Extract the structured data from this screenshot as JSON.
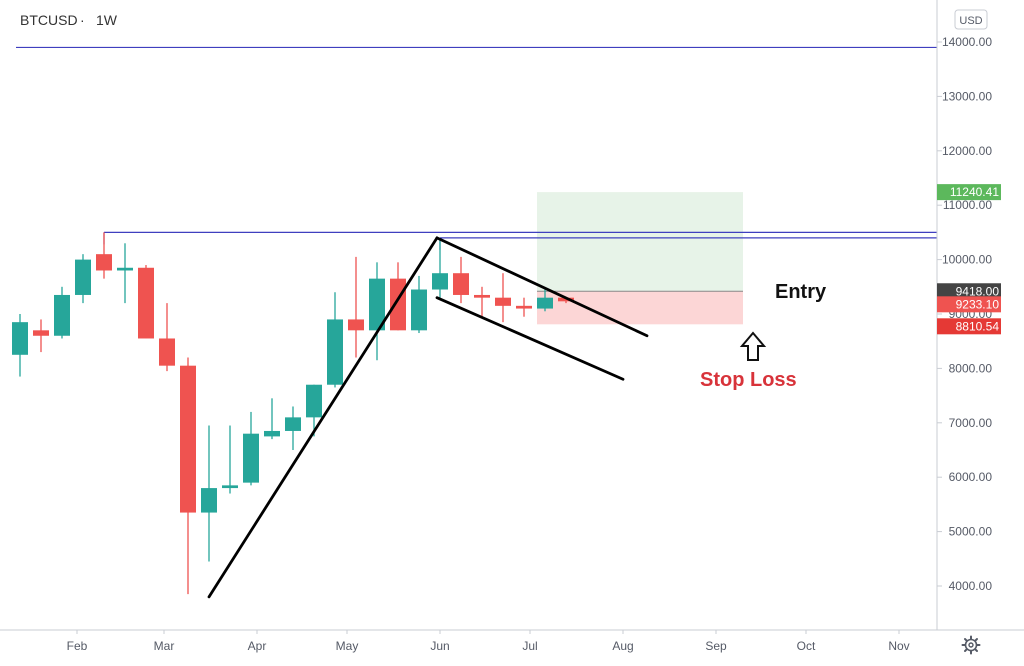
{
  "header": {
    "symbol": "BTCUSD",
    "timeframe": "1W"
  },
  "currency_badge": "USD",
  "settings_icon": "gear-icon",
  "colors": {
    "up": "#26a69a",
    "down": "#ef5350",
    "resistance": "#3f3fbf",
    "target_zone": "#e3f1e4",
    "stop_zone": "#fbcfcf",
    "entry_badge": "#444444",
    "stop_badge": "#e53935",
    "target_badge": "#5cb85c",
    "stop_label": "#d8333a"
  },
  "annotations": {
    "entry_label": "Entry",
    "stop_label": "Stop Loss"
  },
  "chart_data": {
    "type": "candlestick",
    "title": "",
    "xlabel": "",
    "ylabel": "",
    "ylim": [
      3250,
      14300
    ],
    "y_ticks": [
      "14000.00",
      "13000.00",
      "12000.00",
      "11000.00",
      "10000.00",
      "9000.00",
      "8000.00",
      "7000.00",
      "6000.00",
      "5000.00",
      "4000.00"
    ],
    "x_ticks": [
      "Feb",
      "Mar",
      "Apr",
      "May",
      "Jun",
      "Jul",
      "Aug",
      "Sep",
      "Oct",
      "Nov"
    ],
    "price_badges": [
      {
        "label": "11240.41",
        "value": 11240.41,
        "role": "target"
      },
      {
        "label": "9418.00",
        "value": 9418.0,
        "role": "entry"
      },
      {
        "label": "9233.10",
        "value": 9233.1,
        "role": "current"
      },
      {
        "label": "8810.54",
        "value": 8810.54,
        "role": "stop"
      }
    ],
    "candles": [
      {
        "date": "2020-01-13",
        "open": 8250,
        "high": 9000,
        "low": 7850,
        "close": 8850
      },
      {
        "date": "2020-01-20",
        "open": 8700,
        "high": 8900,
        "low": 8300,
        "close": 8600
      },
      {
        "date": "2020-01-27",
        "open": 8600,
        "high": 9500,
        "low": 8550,
        "close": 9350
      },
      {
        "date": "2020-02-03",
        "open": 9350,
        "high": 10100,
        "low": 9200,
        "close": 10000
      },
      {
        "date": "2020-02-10",
        "open": 10100,
        "high": 10500,
        "low": 9650,
        "close": 9800
      },
      {
        "date": "2020-02-17",
        "open": 9800,
        "high": 10300,
        "low": 9200,
        "close": 9850
      },
      {
        "date": "2020-02-24",
        "open": 9850,
        "high": 9900,
        "low": 8550,
        "close": 8550
      },
      {
        "date": "2020-03-02",
        "open": 8550,
        "high": 9200,
        "low": 7950,
        "close": 8050
      },
      {
        "date": "2020-03-09",
        "open": 8050,
        "high": 8200,
        "low": 3850,
        "close": 5350
      },
      {
        "date": "2020-03-16",
        "open": 5350,
        "high": 6950,
        "low": 4450,
        "close": 5800
      },
      {
        "date": "2020-03-23",
        "open": 5800,
        "high": 6950,
        "low": 5700,
        "close": 5850
      },
      {
        "date": "2020-03-30",
        "open": 5900,
        "high": 7200,
        "low": 5850,
        "close": 6800
      },
      {
        "date": "2020-04-06",
        "open": 6750,
        "high": 7450,
        "low": 6700,
        "close": 6850
      },
      {
        "date": "2020-04-13",
        "open": 6850,
        "high": 7300,
        "low": 6500,
        "close": 7100
      },
      {
        "date": "2020-04-20",
        "open": 7100,
        "high": 7700,
        "low": 6750,
        "close": 7700
      },
      {
        "date": "2020-04-27",
        "open": 7700,
        "high": 9400,
        "low": 7650,
        "close": 8900
      },
      {
        "date": "2020-05-04",
        "open": 8900,
        "high": 10050,
        "low": 8200,
        "close": 8700
      },
      {
        "date": "2020-05-11",
        "open": 8700,
        "high": 9950,
        "low": 8150,
        "close": 9650
      },
      {
        "date": "2020-05-18",
        "open": 9650,
        "high": 9950,
        "low": 8700,
        "close": 8700
      },
      {
        "date": "2020-05-25",
        "open": 8700,
        "high": 9700,
        "low": 8650,
        "close": 9450
      },
      {
        "date": "2020-06-01",
        "open": 9450,
        "high": 10400,
        "low": 9300,
        "close": 9750
      },
      {
        "date": "2020-06-08",
        "open": 9750,
        "high": 10050,
        "low": 9200,
        "close": 9350
      },
      {
        "date": "2020-06-15",
        "open": 9350,
        "high": 9500,
        "low": 8950,
        "close": 9300
      },
      {
        "date": "2020-06-22",
        "open": 9300,
        "high": 9750,
        "low": 8850,
        "close": 9150
      },
      {
        "date": "2020-06-29",
        "open": 9150,
        "high": 9300,
        "low": 8950,
        "close": 9100
      },
      {
        "date": "2020-07-06",
        "open": 9100,
        "high": 9450,
        "low": 9050,
        "close": 9300
      },
      {
        "date": "2020-07-13",
        "open": 9300,
        "high": 9300,
        "low": 9200,
        "close": 9233.1
      }
    ],
    "horizontal_lines": [
      {
        "value": 13900
      },
      {
        "value": 10500,
        "start": "2020-02-10"
      },
      {
        "value": 10400,
        "start": "2020-06-01"
      }
    ],
    "trend_lines": [
      {
        "from": {
          "date": "2020-03-16",
          "value": 3800
        },
        "to": {
          "date": "2020-05-31",
          "value": 10400
        }
      },
      {
        "from": {
          "date": "2020-05-31",
          "value": 10400
        },
        "to": {
          "date": "2020-08-09",
          "value": 8600
        }
      },
      {
        "from": {
          "date": "2020-05-31",
          "value": 9300
        },
        "to": {
          "date": "2020-08-01",
          "value": 7800
        }
      }
    ],
    "position_tool": {
      "start": "2020-07-06",
      "end": "2020-09-10",
      "entry": 9418.0,
      "target": 11240.41,
      "stop": 8810.54
    }
  }
}
